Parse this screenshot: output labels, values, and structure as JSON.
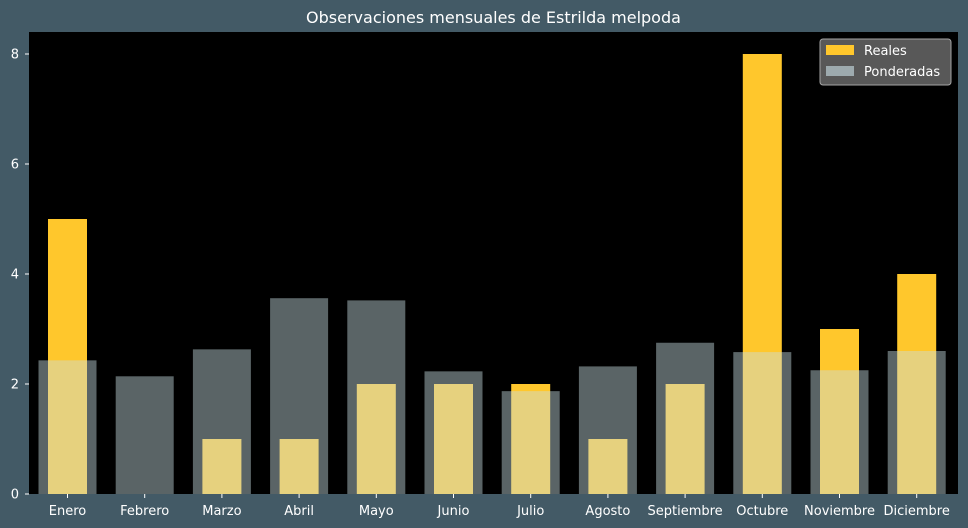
{
  "chart_data": {
    "type": "bar",
    "title": "Observaciones mensuales de Estrilda melpoda",
    "xlabel": "",
    "ylabel": "",
    "ylim": [
      0,
      8.4
    ],
    "yticks": [
      0,
      2,
      4,
      6,
      8
    ],
    "grid": false,
    "legend_position": "top-right",
    "categories": [
      "Enero",
      "Febrero",
      "Marzo",
      "Abril",
      "Mayo",
      "Junio",
      "Julio",
      "Agosto",
      "Septiembre",
      "Octubre",
      "Noviembre",
      "Diciembre"
    ],
    "series": [
      {
        "name": "Reales",
        "color": "#ffc72c",
        "values": [
          5,
          0,
          1,
          1,
          2,
          2,
          2,
          1,
          2,
          8,
          3,
          4
        ]
      },
      {
        "name": "Ponderadas",
        "color": "#c8dde3",
        "opacity": 0.45,
        "values": [
          2.43,
          2.14,
          2.63,
          3.56,
          3.52,
          2.23,
          1.87,
          2.32,
          2.75,
          2.58,
          2.25,
          2.6
        ]
      }
    ]
  },
  "colors": {
    "figure_background": "#435a66",
    "plot_background": "#000000",
    "text": "#ffffff"
  }
}
